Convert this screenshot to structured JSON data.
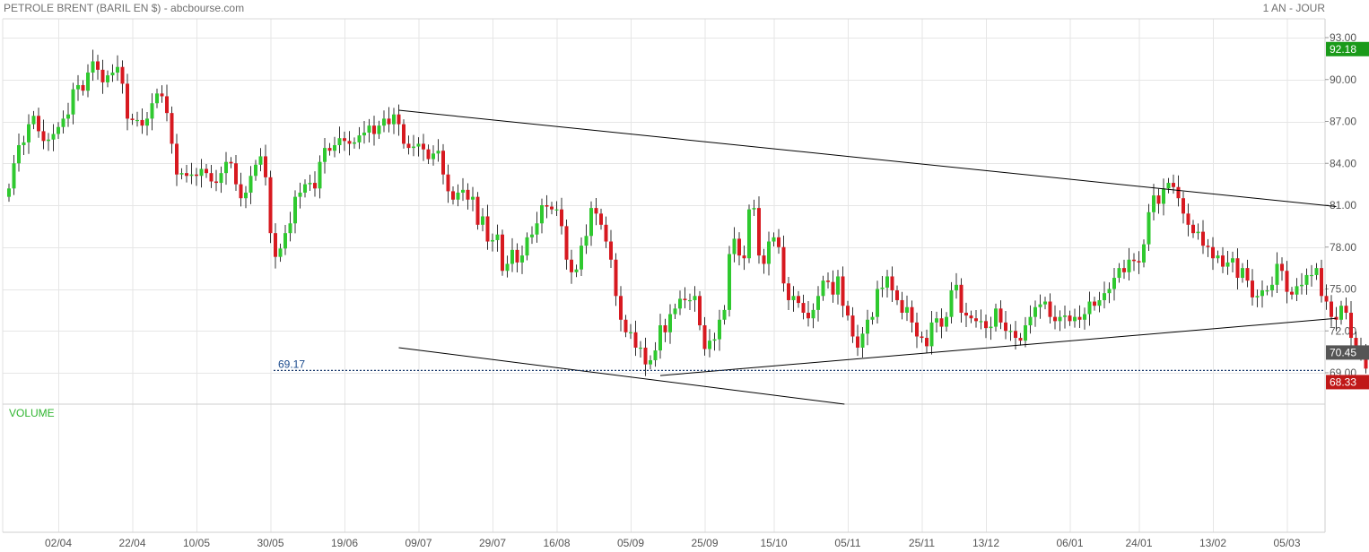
{
  "header": {
    "title": "PETROLE BRENT (BARIL EN $) - abcbourse.com",
    "period": "1 AN - JOUR"
  },
  "panels": {
    "volume_label": "VOLUME"
  },
  "colors": {
    "up": "#2fc92f",
    "down": "#d71920",
    "grid": "#e6e6e6",
    "trendline": "#000000",
    "reference": "#1a3a6c",
    "badge_high": "#1a9a1a",
    "badge_last": "#555555",
    "badge_low": "#c01818"
  },
  "chart_data": {
    "type": "candlestick",
    "title": "PETROLE BRENT (BARIL EN $)",
    "period": "1 AN - JOUR",
    "ylim": [
      68.0,
      94.5
    ],
    "y_ticks": [
      "93.00",
      "90.00",
      "87.00",
      "84.00",
      "81.00",
      "78.00",
      "75.00",
      "72.00",
      "69.00"
    ],
    "x_tick_labels": [
      "02/04",
      "22/04",
      "10/05",
      "30/05",
      "19/06",
      "09/07",
      "29/07",
      "16/08",
      "05/09",
      "25/09",
      "15/10",
      "05/11",
      "25/11",
      "13/12",
      "06/01",
      "24/01",
      "13/02",
      "05/03"
    ],
    "x_tick_positions": [
      10,
      25,
      38,
      53,
      68,
      83,
      98,
      111,
      126,
      141,
      155,
      170,
      185,
      198,
      215,
      229,
      244,
      259
    ],
    "grid": true,
    "reference_line": {
      "value": 69.17,
      "label": "69.17",
      "style": "dotted"
    },
    "price_badges": [
      {
        "label": "92.18",
        "value": 92.18,
        "role": "high"
      },
      {
        "label": "70.45",
        "value": 70.45,
        "role": "last"
      },
      {
        "label": "68.33",
        "value": 68.33,
        "role": "low"
      }
    ],
    "trendlines": [
      {
        "from": [
          79,
          87.8
        ],
        "to": [
          269,
          80.9
        ]
      },
      {
        "from": [
          132,
          68.8
        ],
        "to": [
          269,
          72.9
        ]
      },
      {
        "from": [
          79,
          70.8
        ],
        "to": [
          175,
          66.5
        ]
      }
    ],
    "closes": [
      82.2,
      84.0,
      85.3,
      85.5,
      86.8,
      87.4,
      86.3,
      85.6,
      85.7,
      86.1,
      86.6,
      87.2,
      87.5,
      89.3,
      89.6,
      89.2,
      90.5,
      91.3,
      90.7,
      89.8,
      90.3,
      90.5,
      90.9,
      89.7,
      87.2,
      87.1,
      87.1,
      86.7,
      87.2,
      88.3,
      89.0,
      88.8,
      87.6,
      85.4,
      83.2,
      83.3,
      83.1,
      83.2,
      83.1,
      83.6,
      83.3,
      82.7,
      82.6,
      83.3,
      84.1,
      84.0,
      82.5,
      81.5,
      81.9,
      83.1,
      83.9,
      84.5,
      83.0,
      79.0,
      77.3,
      77.9,
      79.0,
      79.7,
      81.6,
      81.9,
      82.5,
      82.6,
      82.2,
      84.1,
      85.1,
      84.9,
      85.3,
      85.8,
      85.6,
      85.4,
      85.5,
      86.0,
      86.2,
      86.7,
      86.1,
      86.7,
      87.2,
      86.8,
      87.5,
      86.8,
      85.4,
      85.1,
      85.2,
      85.4,
      85.0,
      84.3,
      84.7,
      84.9,
      83.2,
      82.0,
      81.4,
      81.9,
      82.1,
      81.4,
      81.6,
      79.6,
      80.2,
      78.4,
      78.5,
      78.9,
      76.3,
      76.8,
      77.8,
      76.9,
      77.4,
      78.7,
      78.9,
      79.7,
      81.0,
      80.9,
      80.7,
      80.7,
      79.5,
      77.1,
      76.2,
      76.4,
      78.1,
      78.8,
      80.8,
      80.4,
      79.6,
      78.4,
      77.1,
      74.5,
      72.8,
      71.9,
      71.9,
      70.8,
      70.8,
      69.6,
      69.9,
      70.6,
      72.4,
      71.9,
      73.2,
      73.6,
      74.3,
      74.2,
      74.2,
      74.5,
      72.4,
      70.7,
      71.3,
      71.4,
      72.8,
      73.5,
      77.5,
      78.6,
      77.4,
      77.2,
      80.7,
      80.8,
      77.4,
      76.8,
      78.4,
      78.7,
      78.0,
      75.4,
      74.2,
      74.5,
      74.0,
      73.3,
      72.9,
      73.5,
      74.5,
      75.6,
      75.5,
      74.6,
      75.9,
      73.8,
      73.1,
      71.6,
      70.8,
      71.8,
      72.8,
      73.0,
      75.0,
      75.1,
      75.9,
      74.9,
      74.2,
      73.3,
      73.7,
      72.6,
      71.6,
      71.5,
      70.9,
      72.6,
      72.9,
      72.3,
      73.0,
      74.9,
      75.3,
      73.3,
      73.1,
      72.9,
      72.7,
      72.7,
      72.2,
      72.3,
      73.6,
      72.6,
      72.0,
      72.0,
      71.5,
      71.3,
      72.4,
      73.0,
      73.7,
      73.9,
      74.1,
      73.0,
      72.7,
      73.0,
      73.1,
      72.7,
      73.0,
      72.8,
      73.2,
      74.1,
      73.8,
      74.2,
      74.7,
      75.0,
      75.8,
      76.5,
      76.2,
      77.1,
      77.0,
      76.9,
      78.2,
      80.5,
      81.7,
      81.1,
      82.2,
      82.6,
      82.3,
      81.5,
      80.4,
      79.6,
      79.0,
      79.1,
      78.1,
      78.0,
      77.2,
      77.4,
      76.6,
      76.9,
      77.2,
      75.8,
      76.5,
      75.6,
      74.4,
      74.5,
      74.9,
      74.9,
      75.3,
      76.8,
      76.3,
      74.8,
      74.6,
      75.2,
      75.3,
      76.0,
      76.0,
      76.5,
      74.5,
      74.1,
      73.0,
      72.8,
      73.8,
      73.3,
      71.5,
      70.8,
      70.7,
      69.3,
      69.4,
      70.2,
      69.7,
      69.6,
      70.3
    ]
  }
}
